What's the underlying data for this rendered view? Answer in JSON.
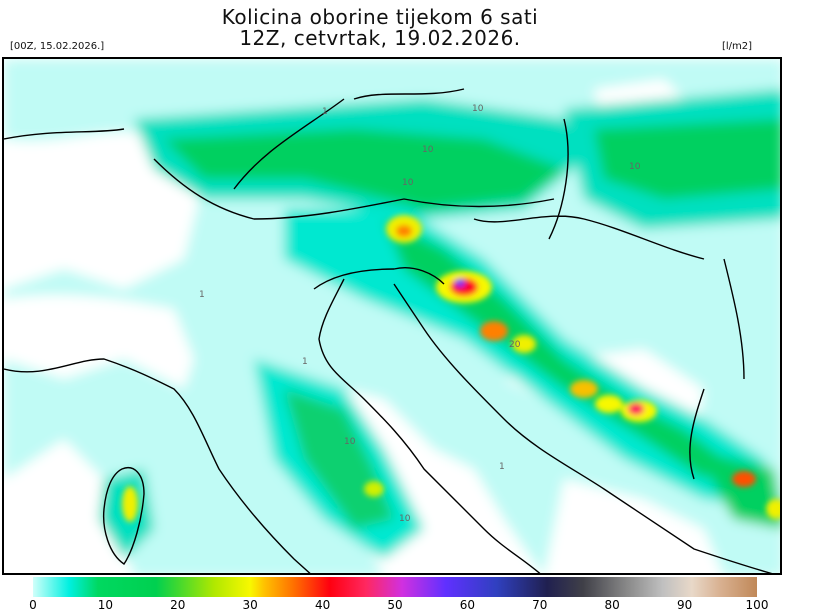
{
  "title": {
    "line1": "Kolicina oborine tijekom 6 sati",
    "line2": "12Z, cetvrtak, 19.02.2026."
  },
  "run_label": "[00Z, 15.02.2026.]",
  "unit_label": "[l/m2]",
  "map": {
    "region": "Northern Italy, Alps and Adriatic (Croatia)",
    "contour_labels": [
      "1",
      "10",
      "10",
      "10",
      "1",
      "10",
      "20",
      "1",
      "10",
      "1",
      "10"
    ]
  },
  "colorbar": {
    "min": 0,
    "max": 100,
    "tick_labels": [
      "0",
      "10",
      "20",
      "30",
      "40",
      "50",
      "60",
      "70",
      "80",
      "90",
      "100"
    ],
    "colors": [
      {
        "v": 0,
        "c": "#d0fffa"
      },
      {
        "v": 5,
        "c": "#00f0e0"
      },
      {
        "v": 9,
        "c": "#00d860"
      },
      {
        "v": 17,
        "c": "#00d050"
      },
      {
        "v": 20,
        "c": "#40d830"
      },
      {
        "v": 25,
        "c": "#b0e800"
      },
      {
        "v": 30,
        "c": "#f8f800"
      },
      {
        "v": 32,
        "c": "#ffc000"
      },
      {
        "v": 36,
        "c": "#ff7000"
      },
      {
        "v": 41,
        "c": "#ff0010"
      },
      {
        "v": 46,
        "c": "#ff2860"
      },
      {
        "v": 51,
        "c": "#d030e0"
      },
      {
        "v": 57,
        "c": "#6030ff"
      },
      {
        "v": 64,
        "c": "#3040c0"
      },
      {
        "v": 71,
        "c": "#202050"
      },
      {
        "v": 76,
        "c": "#404048"
      },
      {
        "v": 82,
        "c": "#888888"
      },
      {
        "v": 87,
        "c": "#c0c0c0"
      },
      {
        "v": 91,
        "c": "#e8d8c8"
      },
      {
        "v": 95,
        "c": "#d8b090"
      },
      {
        "v": 100,
        "c": "#c08858"
      }
    ]
  }
}
